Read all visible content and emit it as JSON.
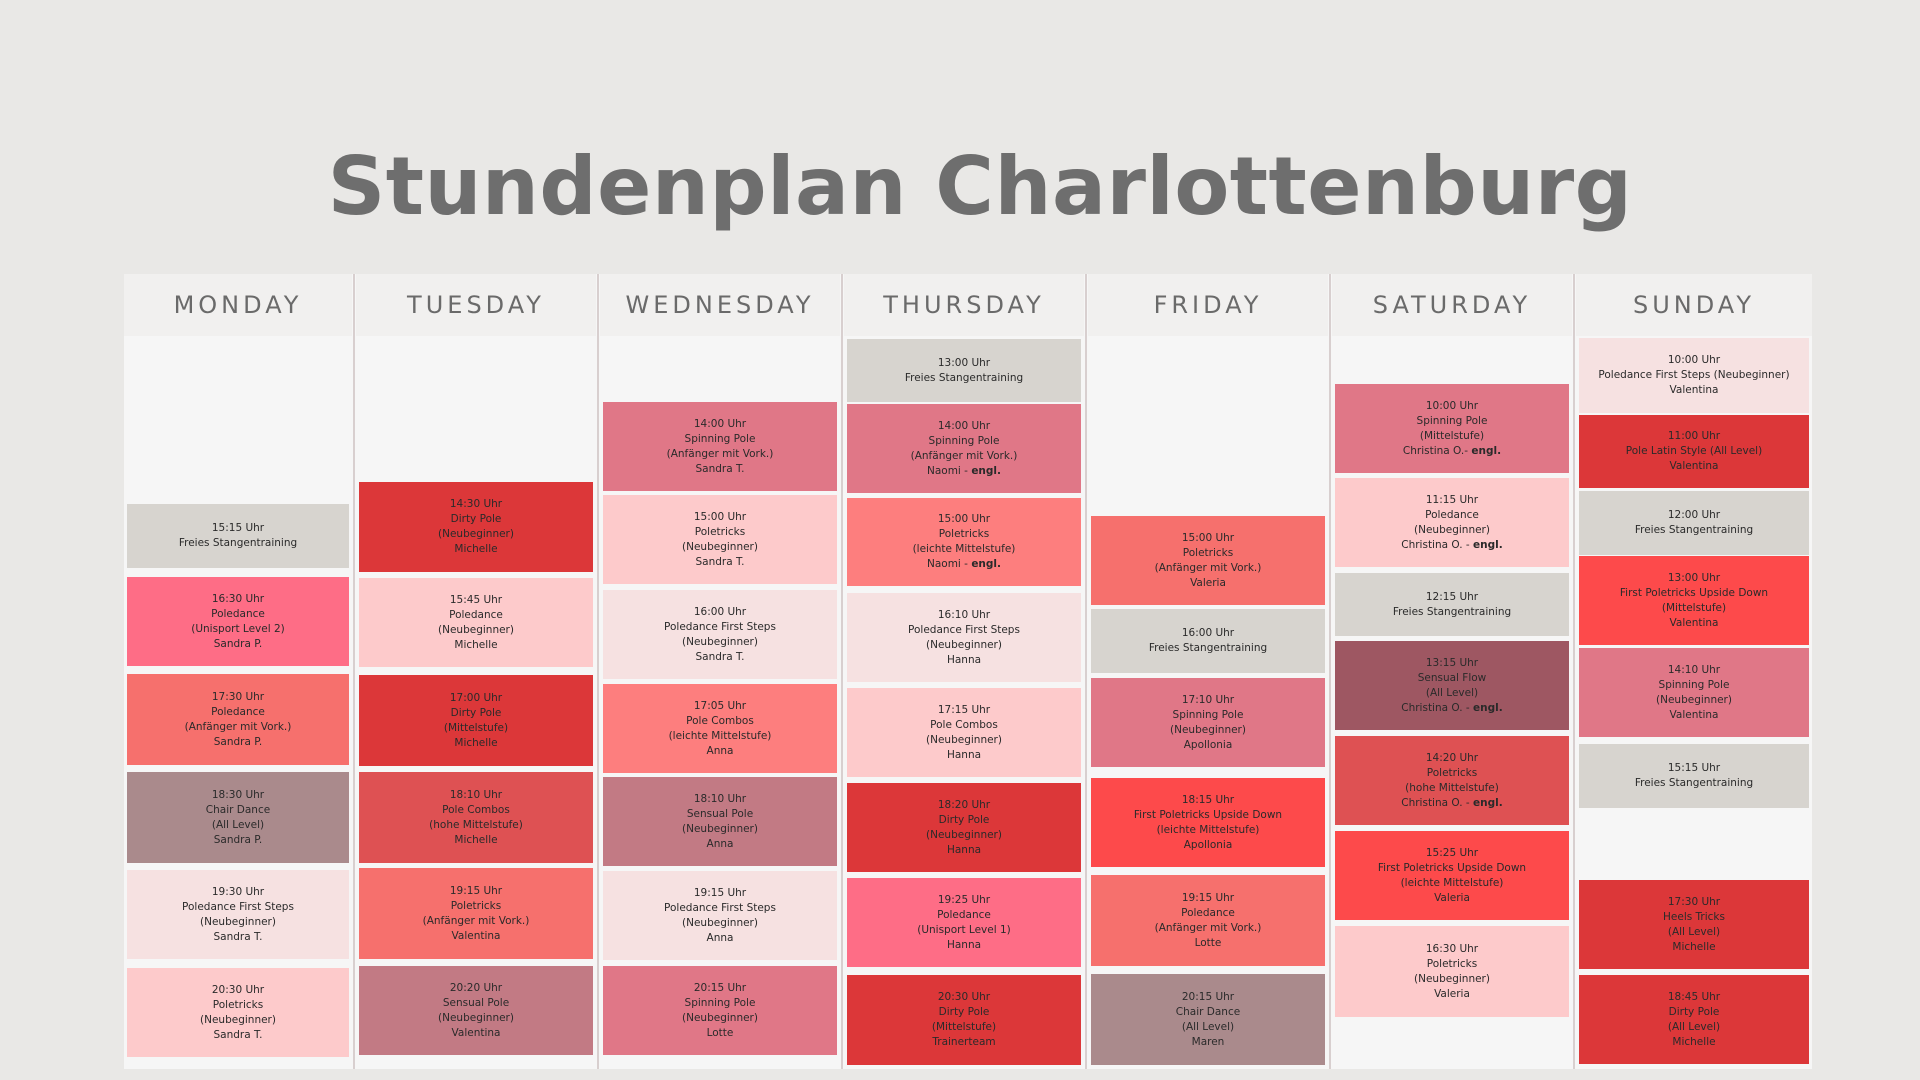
{
  "title": "Stundenplan Charlottenburg",
  "days": [
    {
      "name": "MONDAY",
      "classes": [
        {
          "time": "15:15 Uhr",
          "lines": [
            "Freies Stangentraining"
          ],
          "color": "#d7d4cf"
        },
        {
          "time": "16:30 Uhr",
          "lines": [
            "Poledance",
            "(Unisport Level 2)",
            "Sandra P."
          ],
          "color": "#fe6d86"
        },
        {
          "time": "17:30 Uhr",
          "lines": [
            "Poledance",
            "(Anfänger mit Vork.)",
            "Sandra P."
          ],
          "color": "#f6706d"
        },
        {
          "time": "18:30 Uhr",
          "lines": [
            "Chair Dance",
            "(All Level)",
            "Sandra P."
          ],
          "color": "#aa8a8c"
        },
        {
          "time": "19:30 Uhr",
          "lines": [
            "Poledance First Steps",
            "(Neubeginner)",
            "Sandra T."
          ],
          "color": "#f6e1e1"
        },
        {
          "time": "20:30 Uhr",
          "lines": [
            "Poletricks",
            "(Neubeginner)",
            "Sandra T."
          ],
          "color": "#fdcacb"
        }
      ]
    },
    {
      "name": "TUESDAY",
      "classes": [
        {
          "time": "14:30 Uhr",
          "lines": [
            "Dirty Pole",
            "(Neubeginner)",
            "Michelle"
          ],
          "color": "#dc3739"
        },
        {
          "time": "15:45 Uhr",
          "lines": [
            "Poledance",
            "(Neubeginner)",
            "Michelle"
          ],
          "color": "#fdcacb"
        },
        {
          "time": "17:00 Uhr",
          "lines": [
            "Dirty Pole",
            "(Mittelstufe)",
            "Michelle"
          ],
          "color": "#dc3739"
        },
        {
          "time": "18:10 Uhr",
          "lines": [
            "Pole Combos",
            "(hohe Mittelstufe)",
            "Michelle"
          ],
          "color": "#de5153"
        },
        {
          "time": "19:15 Uhr",
          "lines": [
            "Poletricks",
            "(Anfänger mit Vork.)",
            "Valentina"
          ],
          "color": "#f6706d"
        },
        {
          "time": "20:20 Uhr",
          "lines": [
            "Sensual Pole",
            "(Neubeginner)",
            "Valentina"
          ],
          "color": "#c27a84"
        }
      ]
    },
    {
      "name": "WEDNESDAY",
      "classes": [
        {
          "time": "14:00 Uhr",
          "lines": [
            "Spinning Pole",
            "(Anfänger mit Vork.)",
            "Sandra T."
          ],
          "color": "#e07787"
        },
        {
          "time": "15:00 Uhr",
          "lines": [
            "Poletricks",
            "(Neubeginner)",
            "Sandra T."
          ],
          "color": "#fdcacb"
        },
        {
          "time": "16:00 Uhr",
          "lines": [
            "Poledance First Steps",
            "(Neubeginner)",
            "Sandra T."
          ],
          "color": "#f6e1e1"
        },
        {
          "time": "17:05 Uhr",
          "lines": [
            "Pole Combos",
            "(leichte Mittelstufe)",
            "Anna"
          ],
          "color": "#fd7e7e"
        },
        {
          "time": "18:10 Uhr",
          "lines": [
            "Sensual Pole",
            "(Neubeginner)",
            "Anna"
          ],
          "color": "#c27a84"
        },
        {
          "time": "19:15 Uhr",
          "lines": [
            "Poledance First Steps",
            "(Neubeginner)",
            "Anna"
          ],
          "color": "#f6e1e1"
        },
        {
          "time": "20:15 Uhr",
          "lines": [
            "Spinning Pole",
            "(Neubeginner)",
            "Lotte"
          ],
          "color": "#e07787"
        }
      ]
    },
    {
      "name": "THURSDAY",
      "classes": [
        {
          "time": "13:00 Uhr",
          "lines": [
            "Freies Stangentraining"
          ],
          "color": "#d7d4cf"
        },
        {
          "time": "14:00 Uhr",
          "lines": [
            "Spinning Pole",
            "(Anfänger mit Vork.)",
            "Naomi - "
          ],
          "bold": "engl.",
          "color": "#e07787"
        },
        {
          "time": "15:00 Uhr",
          "lines": [
            "Poletricks",
            "(leichte Mittelstufe)",
            "Naomi - "
          ],
          "bold": "engl.",
          "color": "#fd7e7e"
        },
        {
          "time": "16:10 Uhr",
          "lines": [
            "Poledance First Steps",
            "(Neubeginner)",
            "Hanna"
          ],
          "color": "#f6e1e1"
        },
        {
          "time": "17:15 Uhr",
          "lines": [
            "Pole Combos",
            "(Neubeginner)",
            "Hanna"
          ],
          "color": "#fdcacb"
        },
        {
          "time": "18:20 Uhr",
          "lines": [
            "Dirty Pole",
            "(Neubeginner)",
            "Hanna"
          ],
          "color": "#dc3739"
        },
        {
          "time": "19:25 Uhr",
          "lines": [
            "Poledance",
            "(Unisport Level 1)",
            "Hanna"
          ],
          "color": "#fe6d86"
        },
        {
          "time": "20:30 Uhr",
          "lines": [
            "Dirty Pole",
            "(Mittelstufe)",
            "Trainerteam"
          ],
          "color": "#dc3739"
        }
      ]
    },
    {
      "name": "FRIDAY",
      "classes": [
        {
          "time": "15:00 Uhr",
          "lines": [
            "Poletricks",
            "(Anfänger mit Vork.)",
            "Valeria"
          ],
          "color": "#f6706d"
        },
        {
          "time": "16:00 Uhr",
          "lines": [
            "Freies Stangentraining"
          ],
          "color": "#d7d4cf"
        },
        {
          "time": "17:10 Uhr",
          "lines": [
            "Spinning Pole",
            "(Neubeginner)",
            "Apollonia"
          ],
          "color": "#e07787"
        },
        {
          "time": "18:15 Uhr",
          "lines": [
            "First Poletricks Upside Down",
            "(leichte Mittelstufe)",
            "Apollonia"
          ],
          "color": "#fd4a4b"
        },
        {
          "time": "19:15 Uhr",
          "lines": [
            "Poledance",
            "(Anfänger mit Vork.)",
            "Lotte"
          ],
          "color": "#f6706d"
        },
        {
          "time": "20:15 Uhr",
          "lines": [
            "Chair Dance",
            "(All Level)",
            "Maren"
          ],
          "color": "#aa8a8c"
        }
      ]
    },
    {
      "name": "SATURDAY",
      "classes": [
        {
          "time": "10:00 Uhr",
          "lines": [
            "Spinning Pole",
            "(Mittelstufe)",
            "Christina O.- "
          ],
          "bold": "engl.",
          "color": "#e07787"
        },
        {
          "time": "11:15 Uhr",
          "lines": [
            "Poledance",
            "(Neubeginner)",
            "Christina O. - "
          ],
          "bold": "engl.",
          "color": "#fdcacb"
        },
        {
          "time": "12:15 Uhr",
          "lines": [
            "Freies Stangentraining"
          ],
          "color": "#d7d4cf"
        },
        {
          "time": "13:15 Uhr",
          "lines": [
            "Sensual Flow",
            "(All Level)",
            "Christina O. - "
          ],
          "bold": "engl.",
          "color": "#9e5762"
        },
        {
          "time": "14:20 Uhr",
          "lines": [
            "Poletricks",
            "(hohe Mittelstufe)",
            "Christina O. - "
          ],
          "bold": "engl.",
          "color": "#de5153"
        },
        {
          "time": "15:25 Uhr",
          "lines": [
            "First Poletricks Upside Down",
            "(leichte Mittelstufe)",
            "Valeria"
          ],
          "color": "#fd4a4b"
        },
        {
          "time": "16:30 Uhr",
          "lines": [
            "Poletricks",
            "(Neubeginner)",
            "Valeria"
          ],
          "color": "#fdcacb"
        }
      ]
    },
    {
      "name": "SUNDAY",
      "classes": [
        {
          "time": "10:00 Uhr",
          "lines": [
            "Poledance First Steps (Neubeginner)",
            "Valentina"
          ],
          "color": "#f6e1e1"
        },
        {
          "time": "11:00 Uhr",
          "lines": [
            "Pole Latin Style (All Level)",
            "Valentina"
          ],
          "color": "#dc3739"
        },
        {
          "time": "12:00 Uhr",
          "lines": [
            "Freies Stangentraining"
          ],
          "color": "#d7d4cf"
        },
        {
          "time": "13:00 Uhr",
          "lines": [
            "First Poletricks Upside Down",
            "(Mittelstufe)",
            "Valentina"
          ],
          "color": "#fd4a4b"
        },
        {
          "time": "14:10 Uhr",
          "lines": [
            "Spinning Pole",
            "(Neubeginner)",
            "Valentina"
          ],
          "color": "#e07787"
        },
        {
          "time": "15:15 Uhr",
          "lines": [
            "Freies Stangentraining"
          ],
          "color": "#d7d4cf"
        },
        {
          "time": "17:30 Uhr",
          "lines": [
            "Heels Tricks",
            "(All Level)",
            "Michelle"
          ],
          "color": "#dc3739"
        },
        {
          "time": "18:45 Uhr",
          "lines": [
            "Dirty Pole",
            "(All Level)",
            "Michelle"
          ],
          "color": "#dc3739"
        }
      ]
    }
  ]
}
